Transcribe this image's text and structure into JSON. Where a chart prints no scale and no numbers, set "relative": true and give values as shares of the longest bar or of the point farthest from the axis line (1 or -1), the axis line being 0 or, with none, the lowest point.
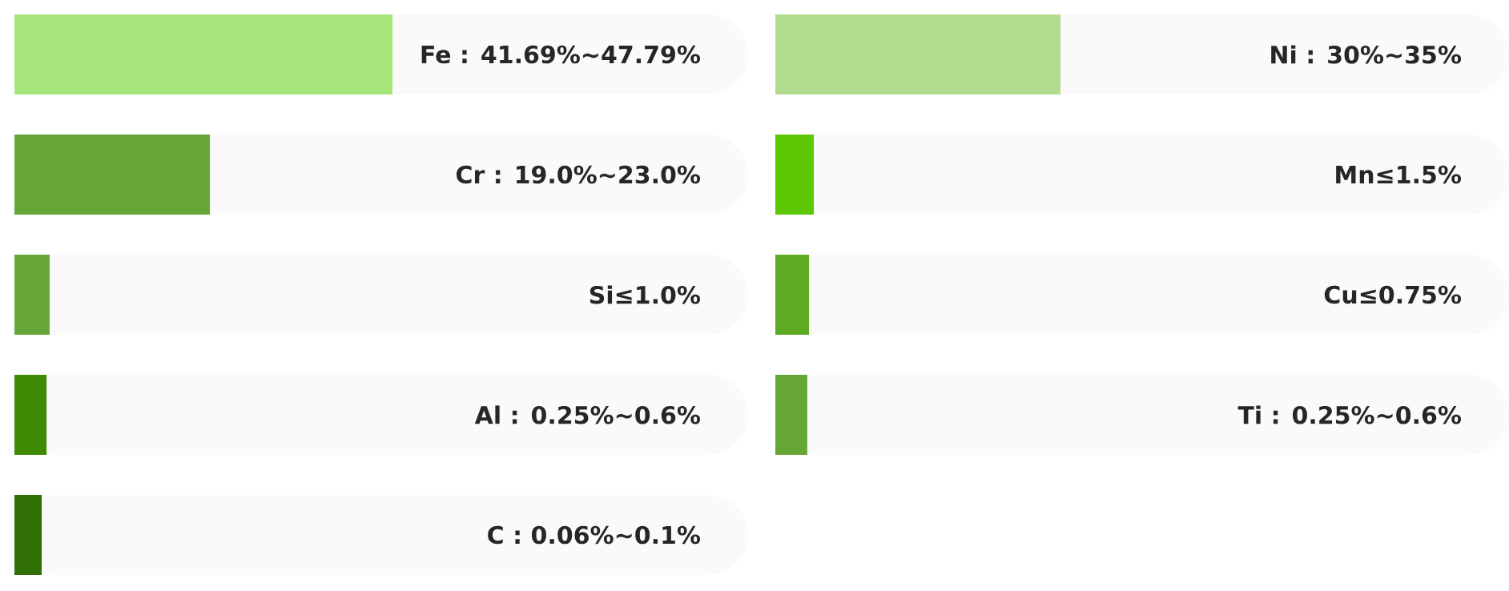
{
  "chart_data": [
    {
      "type": "bar",
      "orientation": "horizontal",
      "relative": true,
      "categories": [
        "Fe : 41.69%~47.79%",
        "Cr : 19.0%~23.0%",
        "Si≤1.0%",
        "Al : 0.25%~0.6%",
        "C : 0.06%~0.1%"
      ],
      "values": [
        1,
        0.517,
        0.093,
        0.085,
        0.072
      ],
      "colors": [
        "#a6e67a",
        "#66a637",
        "#66a637",
        "#3e8a05",
        "#317004"
      ]
    },
    {
      "type": "bar",
      "orientation": "horizontal",
      "relative": true,
      "categories": [
        "Ni : 30%~35%",
        "Mn≤1.5%",
        "Cu≤0.75%",
        "Ti : 0.25%~0.6%"
      ],
      "values": [
        1,
        0.135,
        0.118,
        0.112
      ],
      "colors": [
        "#b2dc8e",
        "#5cc805",
        "#5eab23",
        "#66a637"
      ]
    }
  ]
}
